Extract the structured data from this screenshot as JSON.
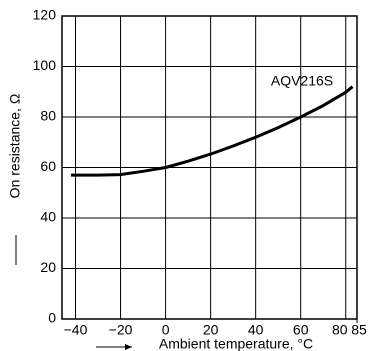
{
  "chart_data": {
    "type": "line",
    "xlabel": "Ambient temperature, °C",
    "ylabel": "On resistance, Ω",
    "x": [
      -42,
      -30,
      -20,
      -10,
      0,
      10,
      20,
      30,
      40,
      50,
      60,
      70,
      80,
      83
    ],
    "series": [
      {
        "name": "AQV216S",
        "color": "#000000",
        "values": [
          57,
          57,
          57.2,
          58.5,
          60,
          62.5,
          65.3,
          68.5,
          72,
          75.8,
          80,
          84.5,
          89.8,
          92
        ]
      }
    ],
    "xlim": [
      -46,
      85
    ],
    "xticks": [
      {
        "value": -40,
        "label": "−40"
      },
      {
        "value": -20,
        "label": "−20"
      },
      0,
      20,
      40,
      60,
      80,
      85
    ],
    "ylim": [
      0,
      120
    ],
    "yticks": [
      0,
      20,
      40,
      60,
      80,
      100,
      120
    ],
    "grid": true
  }
}
